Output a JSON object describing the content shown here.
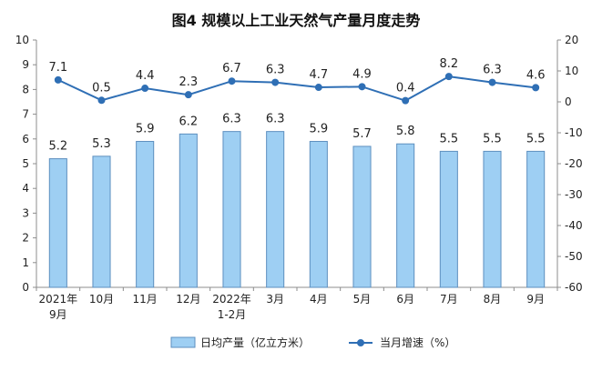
{
  "chart_data": {
    "type": "bar",
    "title": "图4  规模以上工业天然气产量月度走势",
    "categories": [
      [
        "2021年",
        "9月"
      ],
      [
        "10月"
      ],
      [
        "11月"
      ],
      [
        "12月"
      ],
      [
        "2022年",
        "1-2月"
      ],
      [
        "3月"
      ],
      [
        "4月"
      ],
      [
        "5月"
      ],
      [
        "6月"
      ],
      [
        "7月"
      ],
      [
        "8月"
      ],
      [
        "9月"
      ]
    ],
    "series": [
      {
        "name": "日均产量（亿立方米）",
        "type": "bar",
        "axis": "left",
        "values": [
          5.2,
          5.3,
          5.9,
          6.2,
          6.3,
          6.3,
          5.9,
          5.7,
          5.8,
          5.5,
          5.5,
          5.5
        ],
        "color": "#9ecff3",
        "stroke": "#5d8fbf"
      },
      {
        "name": "当月增速（%）",
        "type": "line",
        "axis": "right",
        "values": [
          7.1,
          0.5,
          4.4,
          2.3,
          6.7,
          6.3,
          4.7,
          4.9,
          0.4,
          8.2,
          6.3,
          4.6
        ],
        "color": "#2f6fb5"
      }
    ],
    "yLeft": {
      "min": 0,
      "max": 10,
      "step": 1
    },
    "yRight": {
      "min": -60,
      "max": 20,
      "step": 10
    },
    "grid": false,
    "legend": {
      "position": "bottom-center",
      "items": [
        "日均产量（亿立方米）",
        "当月增速（%）"
      ]
    }
  }
}
